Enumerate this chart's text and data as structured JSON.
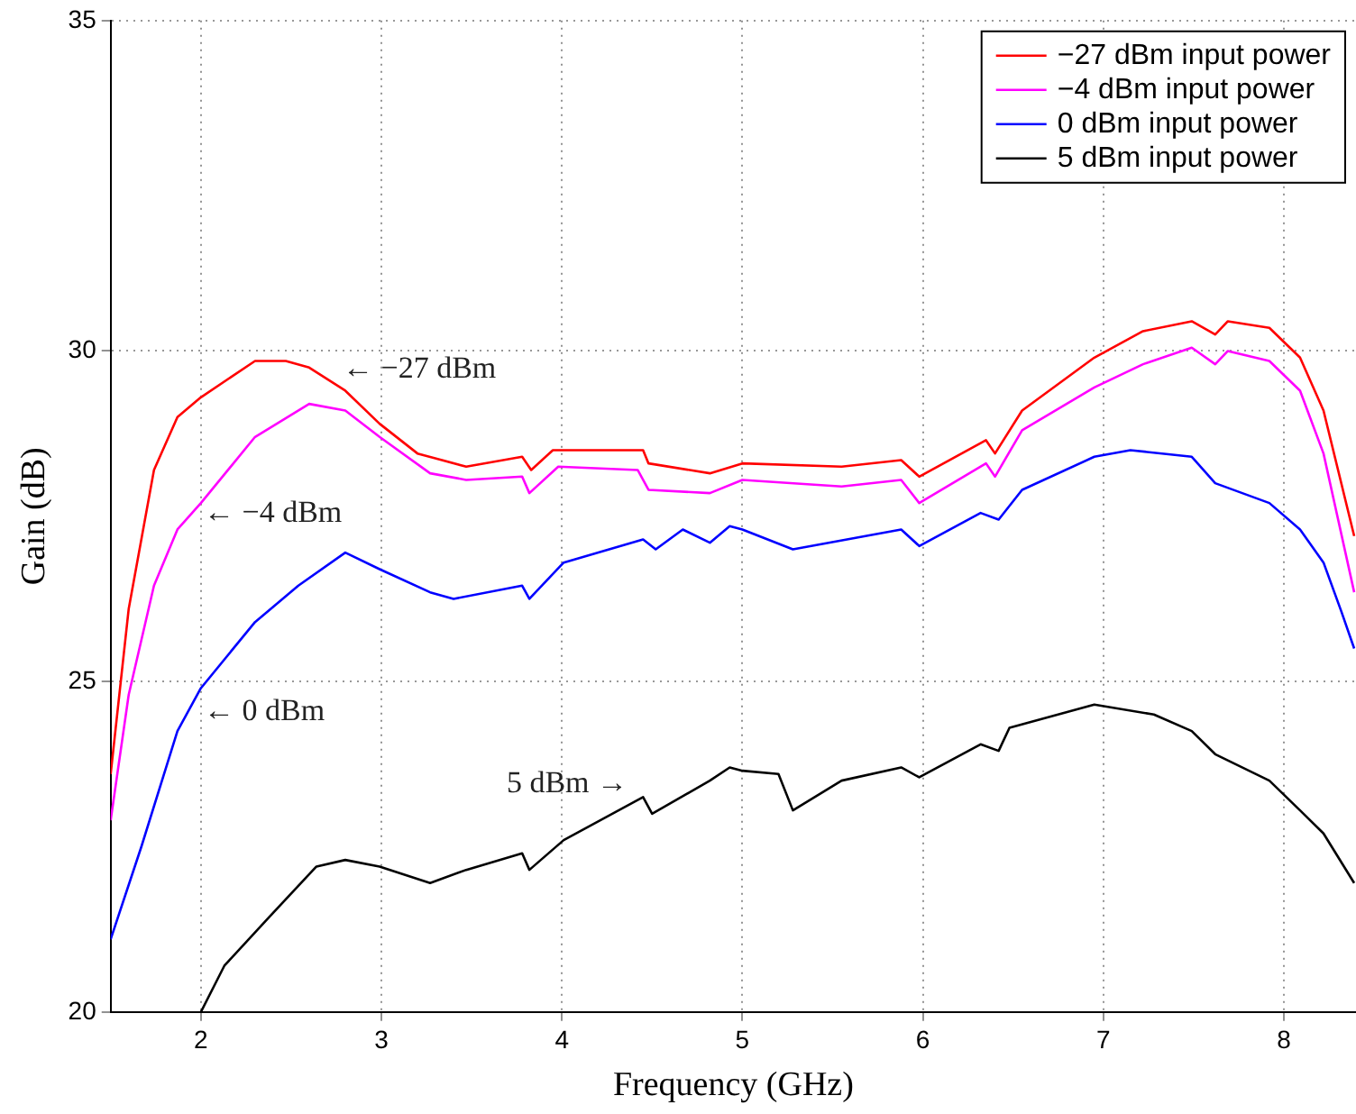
{
  "chart_data": {
    "type": "line",
    "xlabel": "Frequency (GHz)",
    "ylabel": "Gain (dB)",
    "xlim": [
      1.5,
      8.4
    ],
    "xticks": [
      2,
      3,
      4,
      5,
      6,
      7,
      8
    ],
    "ylim": [
      20,
      35
    ],
    "yticks": [
      20,
      25,
      30,
      35
    ],
    "grid": true,
    "legend": "top right",
    "line_style": "solid",
    "series": [
      {
        "name": "−27 dBm input power",
        "color": "#ff0000",
        "x": [
          1.5,
          1.6,
          1.74,
          1.87,
          2.0,
          2.3,
          2.47,
          2.6,
          2.8,
          2.99,
          3.2,
          3.47,
          3.78,
          3.83,
          3.95,
          4.3,
          4.45,
          4.48,
          4.82,
          5.0,
          5.55,
          5.88,
          5.98,
          6.35,
          6.4,
          6.55,
          6.95,
          7.22,
          7.49,
          7.62,
          7.69,
          7.92,
          8.09,
          8.22,
          8.39
        ],
        "values": [
          23.6,
          26.1,
          28.2,
          29.0,
          29.3,
          29.85,
          29.85,
          29.75,
          29.4,
          28.9,
          28.45,
          28.25,
          28.4,
          28.2,
          28.5,
          28.5,
          28.5,
          28.3,
          28.15,
          28.3,
          28.25,
          28.35,
          28.1,
          28.65,
          28.45,
          29.1,
          29.9,
          30.3,
          30.45,
          30.25,
          30.45,
          30.35,
          29.9,
          29.1,
          27.2
        ]
      },
      {
        "name": "−4 dBm input power",
        "color": "#ff00ff",
        "x": [
          1.5,
          1.6,
          1.74,
          1.87,
          2.0,
          2.3,
          2.6,
          2.8,
          2.99,
          3.27,
          3.47,
          3.78,
          3.82,
          3.98,
          4.42,
          4.48,
          4.82,
          5.0,
          5.55,
          5.88,
          5.98,
          6.35,
          6.4,
          6.55,
          6.95,
          7.22,
          7.49,
          7.62,
          7.69,
          7.92,
          8.09,
          8.22,
          8.39
        ],
        "values": [
          22.9,
          24.8,
          26.45,
          27.3,
          27.7,
          28.7,
          29.2,
          29.1,
          28.7,
          28.15,
          28.05,
          28.1,
          27.85,
          28.25,
          28.2,
          27.9,
          27.85,
          28.05,
          27.95,
          28.05,
          27.7,
          28.3,
          28.1,
          28.8,
          29.45,
          29.8,
          30.05,
          29.8,
          30.0,
          29.85,
          29.4,
          28.45,
          26.35
        ]
      },
      {
        "name": "0 dBm input power",
        "color": "#0000ff",
        "x": [
          1.5,
          1.67,
          1.87,
          2.0,
          2.3,
          2.54,
          2.8,
          2.99,
          3.27,
          3.4,
          3.78,
          3.82,
          4.01,
          4.45,
          4.52,
          4.67,
          4.82,
          4.93,
          5.0,
          5.28,
          5.88,
          5.98,
          6.32,
          6.42,
          6.55,
          6.95,
          7.15,
          7.49,
          7.62,
          7.92,
          8.09,
          8.22,
          8.32,
          8.39
        ],
        "values": [
          21.1,
          22.5,
          24.25,
          24.9,
          25.9,
          26.45,
          26.95,
          26.7,
          26.35,
          26.25,
          26.45,
          26.25,
          26.8,
          27.15,
          27.0,
          27.3,
          27.1,
          27.35,
          27.3,
          27.0,
          27.3,
          27.05,
          27.55,
          27.45,
          27.9,
          28.4,
          28.5,
          28.4,
          28.0,
          27.7,
          27.3,
          26.8,
          26.05,
          25.5
        ]
      },
      {
        "name": "5 dBm input power",
        "color": "#000000",
        "x": [
          2.0,
          2.13,
          2.4,
          2.64,
          2.8,
          2.99,
          3.27,
          3.47,
          3.78,
          3.82,
          4.01,
          4.45,
          4.5,
          4.82,
          4.93,
          5.0,
          5.2,
          5.28,
          5.55,
          5.88,
          5.98,
          6.32,
          6.42,
          6.48,
          6.95,
          7.28,
          7.49,
          7.62,
          7.92,
          8.09,
          8.22,
          8.39
        ],
        "values": [
          20.0,
          20.7,
          21.5,
          22.2,
          22.3,
          22.2,
          21.95,
          22.15,
          22.4,
          22.15,
          22.6,
          23.25,
          23.0,
          23.5,
          23.7,
          23.65,
          23.6,
          23.05,
          23.5,
          23.7,
          23.55,
          24.05,
          23.95,
          24.3,
          24.65,
          24.5,
          24.25,
          23.9,
          23.5,
          23.05,
          22.7,
          21.95
        ]
      }
    ],
    "annotations": [
      "← −27 dBm",
      "← −4 dBm",
      "← 0 dBm",
      "5 dBm →"
    ]
  }
}
